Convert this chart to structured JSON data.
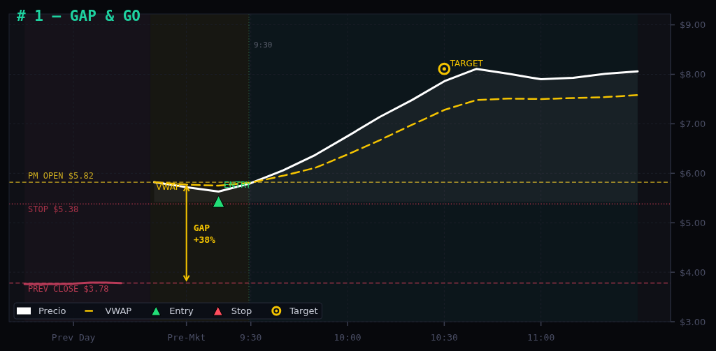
{
  "chart_data": {
    "type": "line",
    "title": "# 1 — GAP & GO",
    "x": [
      9,
      9.167,
      9.333,
      9.5,
      9.667,
      9.833,
      10,
      10.167,
      10.333,
      10.5,
      10.667,
      10.833,
      11,
      11.167,
      11.333,
      11.5
    ],
    "series": [
      {
        "type": "line",
        "color": "#b83a58",
        "x": [
          8.33,
          8.42,
          8.5,
          8.58,
          8.67,
          8.75,
          8.83
        ],
        "values": [
          3.76,
          3.76,
          3.76,
          3.77,
          3.79,
          3.79,
          3.78
        ]
      },
      {
        "name": "Precio",
        "type": "line",
        "color": "#ffffff",
        "values": [
          5.82,
          5.72,
          5.63,
          5.8,
          6.06,
          6.37,
          6.75,
          7.14,
          7.48,
          7.86,
          8.11,
          8.01,
          7.9,
          7.93,
          8.01,
          8.06
        ],
        "lower": [
          5.42,
          5.42,
          5.42,
          5.42,
          5.42,
          5.42,
          5.42,
          5.42,
          5.42,
          5.42,
          5.42,
          5.42,
          5.42,
          5.42,
          5.42,
          5.42
        ],
        "upper": [
          5.82,
          5.72,
          5.63,
          5.8,
          6.06,
          6.37,
          6.75,
          7.14,
          7.48,
          7.86,
          8.11,
          8.01,
          7.9,
          7.93,
          8.01,
          8.06
        ]
      },
      {
        "name": "VWAP",
        "type": "line",
        "color": "#f5c400",
        "line_style": "dashed",
        "values": [
          5.82,
          5.77,
          5.75,
          5.81,
          5.95,
          6.11,
          6.38,
          6.67,
          6.98,
          7.28,
          7.48,
          7.51,
          7.5,
          7.52,
          7.54,
          7.58
        ]
      },
      {
        "name": "Entry",
        "type": "scatter",
        "marker": "triangle",
        "color": "#22dd77",
        "x": [
          9.333
        ],
        "values": [
          5.43
        ]
      },
      {
        "name": "Stop",
        "type": "scatter",
        "marker": "triangle",
        "color": "#ff4d5e",
        "values": [
          null,
          null,
          null,
          null,
          null,
          null,
          null,
          null,
          null,
          null,
          null,
          null,
          null,
          null,
          null,
          null
        ]
      },
      {
        "name": "Target",
        "type": "scatter",
        "marker": "circle",
        "color": "#f5c400",
        "x": [
          10.5
        ],
        "values": [
          8.11
        ]
      }
    ],
    "xlim": [
      8.25,
      11.67
    ],
    "xticks": [
      {
        "value": 8.583,
        "label": "Prev Day"
      },
      {
        "value": 9.167,
        "label": "Pre-Mkt"
      },
      {
        "value": 9.5,
        "label": "9:30"
      },
      {
        "value": 10,
        "label": "10:00"
      },
      {
        "value": 10.5,
        "label": "10:30"
      },
      {
        "value": 11,
        "label": "11:00"
      }
    ],
    "ylim": [
      3,
      9.22
    ],
    "yticks": [
      {
        "value": 3,
        "label": "$3.00"
      },
      {
        "value": 4,
        "label": "$4.00"
      },
      {
        "value": 5,
        "label": "$5.00"
      },
      {
        "value": 6,
        "label": "$6.00"
      },
      {
        "value": 7,
        "label": "$7.00"
      },
      {
        "value": 8,
        "label": "$8.00"
      },
      {
        "value": 9,
        "label": "$9.00"
      }
    ],
    "grid": true,
    "legend": "bottom left",
    "bands": [
      {
        "axis": "x",
        "from": 8.33,
        "to": 8.98,
        "color": "#16121a"
      },
      {
        "axis": "x",
        "from": 8.98,
        "to": 9.49,
        "color": "#171712"
      },
      {
        "axis": "x",
        "from": 9.49,
        "to": 11.5,
        "color": "#0c161b"
      }
    ],
    "ref_lines": [
      {
        "axis": "y",
        "value": 5.82,
        "label": "PM OPEN $5.82",
        "color": "#c8a820",
        "line_style": "dashed"
      },
      {
        "axis": "y",
        "value": 5.38,
        "label": "STOP $5.38",
        "color": "#a83248",
        "line_style": "dotted"
      },
      {
        "axis": "y",
        "value": 3.78,
        "label": "PREV CLOSE $3.78",
        "color": "#b83a52",
        "line_style": "dashed"
      },
      {
        "axis": "x",
        "value": 9.49,
        "label": "9:30",
        "color": "#2c5a40",
        "line_style": "dotted"
      }
    ],
    "annotations": [
      {
        "text": "TARGET",
        "x": 10.53,
        "y": 8.22
      },
      {
        "text": "ENTRY",
        "x": 9.36,
        "y": 5.76
      },
      {
        "text": "VWAP",
        "x": 9.01,
        "y": 5.72
      },
      "GAP\n+38%"
    ]
  }
}
